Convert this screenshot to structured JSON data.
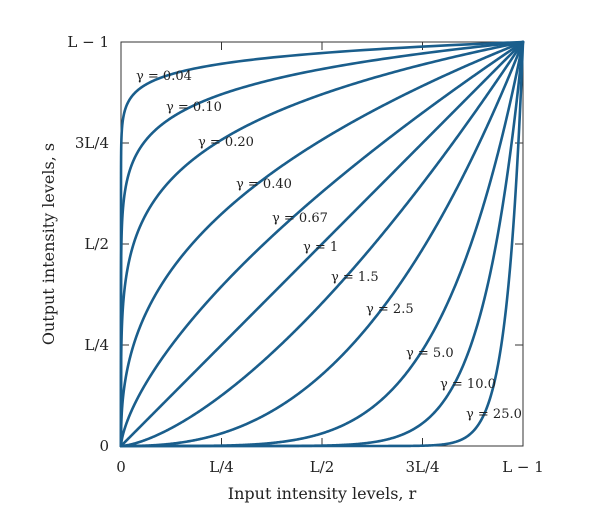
{
  "chart_data": {
    "type": "line",
    "xlabel": "Input intensity levels, r",
    "ylabel": "Output intensity levels, s",
    "xlim": [
      0,
      1
    ],
    "ylim": [
      0,
      1
    ],
    "x_ticks": [
      {
        "value": 0,
        "label": "0"
      },
      {
        "value": 0.25,
        "label": "L/4"
      },
      {
        "value": 0.5,
        "label": "L/2"
      },
      {
        "value": 0.75,
        "label": "3L/4"
      },
      {
        "value": 1,
        "label": "L − 1"
      }
    ],
    "y_ticks": [
      {
        "value": 0,
        "label": "0"
      },
      {
        "value": 0.25,
        "label": "L/4"
      },
      {
        "value": 0.5,
        "label": "L/2"
      },
      {
        "value": 0.75,
        "label": "3L/4"
      },
      {
        "value": 1,
        "label": "L − 1"
      }
    ],
    "series": [
      {
        "name": "γ = 0.04",
        "gamma": 0.04
      },
      {
        "name": "γ = 0.10",
        "gamma": 0.1
      },
      {
        "name": "γ = 0.20",
        "gamma": 0.2
      },
      {
        "name": "γ = 0.40",
        "gamma": 0.4
      },
      {
        "name": "γ = 0.67",
        "gamma": 0.67
      },
      {
        "name": "γ = 1",
        "gamma": 1
      },
      {
        "name": "γ = 1.5",
        "gamma": 1.5
      },
      {
        "name": "γ = 2.5",
        "gamma": 2.5
      },
      {
        "name": "γ = 5.0",
        "gamma": 5.0
      },
      {
        "name": "γ = 10.0",
        "gamma": 10.0
      },
      {
        "name": "γ = 25.0",
        "gamma": 25.0
      }
    ],
    "grid": false,
    "colors": {
      "curve": "#1a5e8c",
      "axis": "#333333",
      "text": "#222222"
    }
  }
}
